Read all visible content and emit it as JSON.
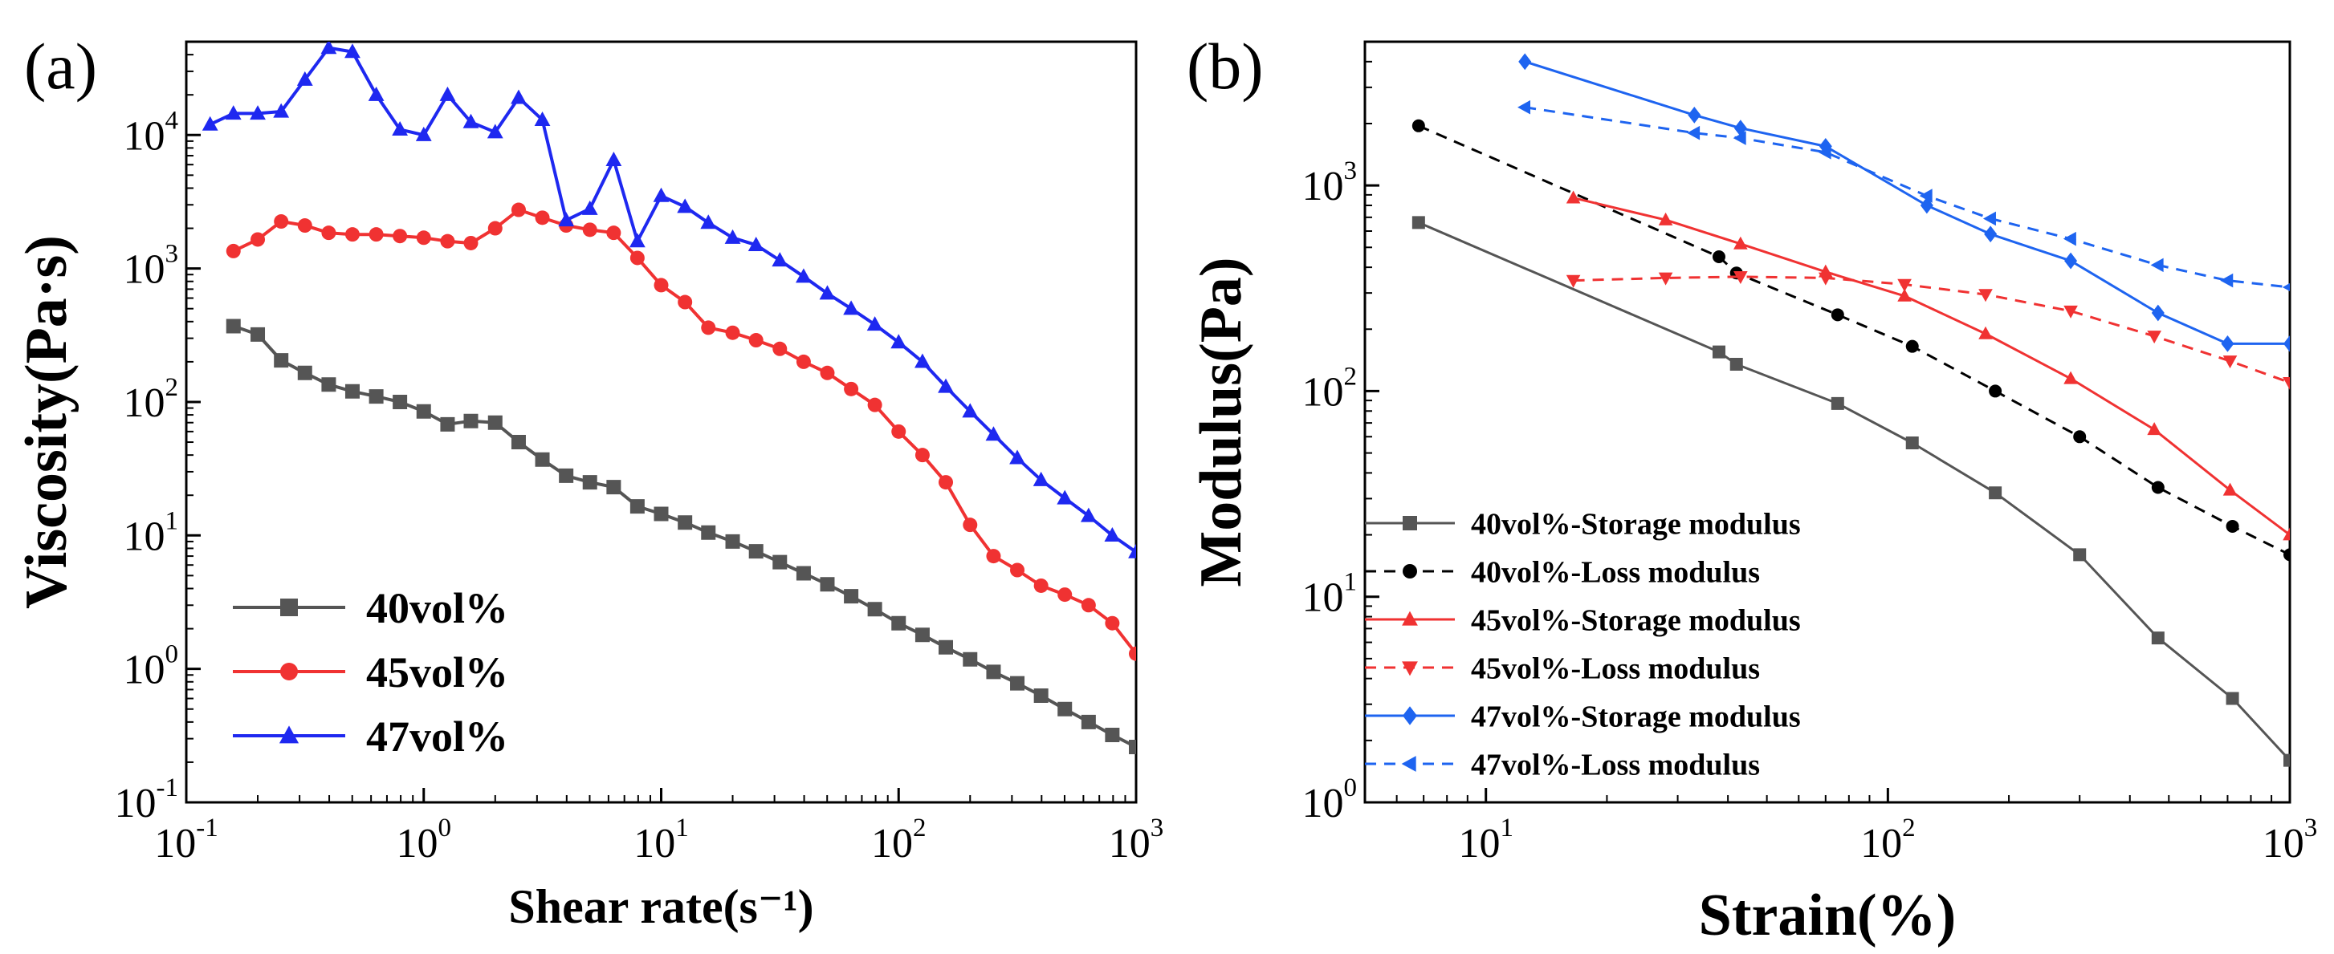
{
  "chart_data": [
    {
      "panel_label": "(a)",
      "type": "line",
      "xlabel": "Shear rate(s⁻¹)",
      "ylabel": "Viscosity(Pa·s)",
      "xscale": "log",
      "yscale": "log",
      "xlim": [
        0.1,
        1000
      ],
      "ylim": [
        0.1,
        50000
      ],
      "x_ticks": [
        {
          "value": 0.1,
          "base": "10",
          "exp": "-1"
        },
        {
          "value": 1,
          "base": "10",
          "exp": "0"
        },
        {
          "value": 10,
          "base": "10",
          "exp": "1"
        },
        {
          "value": 100,
          "base": "10",
          "exp": "2"
        },
        {
          "value": 1000,
          "base": "10",
          "exp": "3"
        }
      ],
      "y_ticks": [
        {
          "value": 0.1,
          "base": "10",
          "exp": "-1"
        },
        {
          "value": 1,
          "base": "10",
          "exp": "0"
        },
        {
          "value": 10,
          "base": "10",
          "exp": "1"
        },
        {
          "value": 100,
          "base": "10",
          "exp": "2"
        },
        {
          "value": 1000,
          "base": "10",
          "exp": "3"
        },
        {
          "value": 10000,
          "base": "10",
          "exp": "4"
        }
      ],
      "legend_position": "bottom-left",
      "series": [
        {
          "name": "40vol%",
          "color": "#555555",
          "marker": "square",
          "dashed": false,
          "x": [
            0.158,
            0.2,
            0.251,
            0.316,
            0.398,
            0.501,
            0.631,
            0.794,
            1,
            1.26,
            1.58,
            2,
            2.51,
            3.16,
            3.98,
            5.01,
            6.31,
            7.94,
            10,
            12.6,
            15.8,
            20,
            25.1,
            31.6,
            39.8,
            50.1,
            63.1,
            79.4,
            100,
            126,
            158,
            200,
            251,
            316,
            398,
            501,
            631,
            794,
            1000
          ],
          "y": [
            370,
            320,
            205,
            165,
            135,
            120,
            110,
            100,
            85,
            68,
            72,
            70,
            50,
            37,
            28,
            25,
            23,
            16.5,
            14.5,
            12.5,
            10.5,
            9,
            7.6,
            6.3,
            5.2,
            4.3,
            3.5,
            2.8,
            2.2,
            1.8,
            1.45,
            1.18,
            0.95,
            0.78,
            0.63,
            0.5,
            0.4,
            0.32,
            0.26
          ]
        },
        {
          "name": "45vol%",
          "color": "#f03232",
          "marker": "circle",
          "dashed": false,
          "x": [
            0.158,
            0.2,
            0.251,
            0.316,
            0.398,
            0.501,
            0.631,
            0.794,
            1,
            1.26,
            1.58,
            2,
            2.51,
            3.16,
            3.98,
            5.01,
            6.31,
            7.94,
            10,
            12.6,
            15.8,
            20,
            25.1,
            31.6,
            39.8,
            50.1,
            63.1,
            79.4,
            100,
            126,
            158,
            200,
            251,
            316,
            398,
            501,
            631,
            794,
            1000
          ],
          "y": [
            1350,
            1650,
            2250,
            2100,
            1850,
            1800,
            1800,
            1750,
            1700,
            1600,
            1550,
            2000,
            2750,
            2400,
            2100,
            1950,
            1850,
            1200,
            750,
            560,
            360,
            330,
            290,
            250,
            200,
            165,
            125,
            95,
            60,
            40,
            25,
            12,
            7,
            5.5,
            4.2,
            3.6,
            3,
            2.2,
            1.3
          ]
        },
        {
          "name": "47vol%",
          "color": "#1e28f0",
          "marker": "triangle",
          "dashed": false,
          "x": [
            0.126,
            0.158,
            0.2,
            0.251,
            0.316,
            0.398,
            0.501,
            0.631,
            0.794,
            1,
            1.26,
            1.58,
            2,
            2.51,
            3.16,
            3.98,
            5.01,
            6.31,
            7.94,
            10,
            12.6,
            15.8,
            20,
            25.1,
            31.6,
            39.8,
            50.1,
            63.1,
            79.4,
            100,
            126,
            158,
            200,
            251,
            316,
            398,
            501,
            631,
            794,
            1000
          ],
          "y": [
            12000,
            14500,
            14500,
            15000,
            26000,
            45000,
            42000,
            20000,
            11000,
            10000,
            20000,
            12500,
            10500,
            19000,
            13000,
            2300,
            2800,
            6500,
            1600,
            3500,
            2900,
            2200,
            1700,
            1500,
            1150,
            870,
            650,
            500,
            380,
            280,
            200,
            130,
            85,
            57,
            38,
            26,
            19,
            14,
            10,
            7.5
          ]
        }
      ]
    },
    {
      "panel_label": "(b)",
      "type": "line",
      "xlabel": "Strain(%)",
      "ylabel": "Modulus(Pa)",
      "xscale": "log",
      "yscale": "log",
      "xlim": [
        5,
        1000
      ],
      "ylim": [
        1,
        5000
      ],
      "x_ticks": [
        {
          "value": 10,
          "base": "10",
          "exp": "1"
        },
        {
          "value": 100,
          "base": "10",
          "exp": "2"
        },
        {
          "value": 1000,
          "base": "10",
          "exp": "3"
        }
      ],
      "y_ticks": [
        {
          "value": 1,
          "base": "10",
          "exp": "0"
        },
        {
          "value": 10,
          "base": "10",
          "exp": "1"
        },
        {
          "value": 100,
          "base": "10",
          "exp": "2"
        },
        {
          "value": 1000,
          "base": "10",
          "exp": "3"
        }
      ],
      "legend_position": "bottom-left",
      "series": [
        {
          "name": "40vol%-Storage modulus",
          "color": "#555555",
          "marker": "square",
          "dashed": false,
          "x": [
            6.8,
            38,
            42,
            75,
            115,
            185,
            300,
            470,
            720,
            1000
          ],
          "y": [
            660,
            155,
            135,
            87,
            56,
            32,
            16,
            6.3,
            3.2,
            1.6
          ]
        },
        {
          "name": "40vol%-Loss modulus",
          "color": "#000000",
          "marker": "circle",
          "dashed": true,
          "x": [
            6.8,
            38,
            42,
            75,
            115,
            185,
            300,
            470,
            720,
            1000
          ],
          "y": [
            1950,
            450,
            375,
            235,
            165,
            100,
            60,
            34,
            22,
            16
          ]
        },
        {
          "name": "45vol%-Storage modulus",
          "color": "#f03232",
          "marker": "triangle",
          "dashed": false,
          "x": [
            16.5,
            28,
            43,
            70,
            110,
            175,
            285,
            460,
            710,
            1000
          ],
          "y": [
            870,
            680,
            520,
            380,
            290,
            190,
            115,
            65,
            33,
            20
          ]
        },
        {
          "name": "45vol%-Loss modulus",
          "color": "#f03232",
          "marker": "triangle-down",
          "dashed": true,
          "x": [
            16.5,
            28,
            43,
            70,
            110,
            175,
            285,
            460,
            710,
            1000
          ],
          "y": [
            345,
            355,
            360,
            355,
            330,
            295,
            245,
            185,
            140,
            110
          ]
        },
        {
          "name": "47vol%-Storage modulus",
          "color": "#1e64f0",
          "marker": "diamond",
          "dashed": false,
          "x": [
            12.5,
            33,
            43,
            70,
            125,
            180,
            285,
            470,
            700,
            1000
          ],
          "y": [
            4000,
            2200,
            1900,
            1550,
            800,
            580,
            430,
            240,
            170,
            170
          ]
        },
        {
          "name": "47vol%-Loss modulus",
          "color": "#1e64f0",
          "marker": "triangle-left",
          "dashed": true,
          "x": [
            12.5,
            33,
            43,
            70,
            125,
            180,
            285,
            470,
            700,
            1000
          ],
          "y": [
            2400,
            1800,
            1700,
            1450,
            890,
            690,
            550,
            410,
            345,
            320
          ]
        }
      ]
    }
  ]
}
